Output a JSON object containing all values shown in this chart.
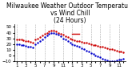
{
  "title": "Milwaukee Weather Outdoor Temperature\nvs Wind Chill\n(24 Hours)",
  "title_fontsize": 5.5,
  "background_color": "#ffffff",
  "plot_bg_color": "#ffffff",
  "grid_color": "#aaaaaa",
  "x_positions": [
    0,
    1,
    2,
    3,
    4,
    5,
    6,
    7,
    8,
    9,
    10,
    11,
    12,
    13,
    14,
    15,
    16,
    17,
    18,
    19,
    20,
    21,
    22,
    23
  ],
  "x_labels": [
    "1",
    "",
    "3",
    "",
    "5",
    "",
    "7",
    "",
    "9",
    "",
    "11",
    "",
    "1",
    "",
    "3",
    "",
    "5",
    "",
    "7",
    "",
    "9",
    "",
    "11",
    ""
  ],
  "ylim": [
    -10,
    55
  ],
  "yticks": [
    -10,
    0,
    10,
    20,
    30,
    40,
    50
  ],
  "ytick_fontsize": 4,
  "xtick_fontsize": 4,
  "temp_color": "#cc0000",
  "wind_chill_color": "#0000cc",
  "marker_size": 1.5,
  "temp_x": [
    0,
    0.5,
    1,
    1.5,
    2,
    2.5,
    3,
    3.5,
    4,
    4.5,
    5,
    5.5,
    6,
    6.5,
    7,
    7.5,
    8,
    8.5,
    9,
    9.5,
    10,
    10.5,
    11,
    11.5,
    12,
    12.5,
    13,
    13.5,
    14,
    14.5,
    15,
    15.5,
    16,
    16.5,
    17,
    17.5,
    18,
    18.5,
    19,
    19.5,
    20,
    20.5,
    21,
    21.5,
    22,
    22.5,
    23
  ],
  "temp_y": [
    28,
    28,
    28,
    27,
    26,
    25,
    24,
    23,
    28,
    30,
    32,
    35,
    38,
    40,
    42,
    43,
    44,
    42,
    40,
    38,
    36,
    34,
    32,
    30,
    28,
    27,
    26,
    25,
    24,
    23,
    22,
    21,
    20,
    19,
    18,
    17,
    16,
    15,
    14,
    13,
    12,
    11,
    10,
    9,
    8,
    7,
    6
  ],
  "wind_x": [
    0,
    0.5,
    1,
    1.5,
    2,
    2.5,
    3,
    3.5,
    4,
    4.5,
    5,
    5.5,
    6,
    6.5,
    7,
    7.5,
    8,
    8.5,
    9,
    9.5,
    10,
    10.5,
    11,
    11.5,
    12,
    12.5,
    13,
    13.5,
    14,
    14.5,
    15,
    15.5,
    16,
    16.5,
    17,
    17.5,
    18,
    18.5,
    19,
    19.5,
    20,
    20.5,
    21,
    21.5,
    22,
    22.5,
    23
  ],
  "wind_y": [
    20,
    20,
    19,
    18,
    17,
    16,
    15,
    14,
    20,
    22,
    25,
    28,
    32,
    35,
    38,
    39,
    40,
    38,
    36,
    34,
    30,
    28,
    25,
    22,
    20,
    19,
    17,
    15,
    13,
    11,
    9,
    7,
    5,
    3,
    1,
    -1,
    -3,
    -5,
    -7,
    -8,
    -9,
    -10,
    -9,
    -8,
    -7,
    -6,
    -5
  ],
  "vgrid_positions": [
    0,
    2,
    4,
    6,
    8,
    10,
    12,
    14,
    16,
    18,
    20,
    22
  ]
}
